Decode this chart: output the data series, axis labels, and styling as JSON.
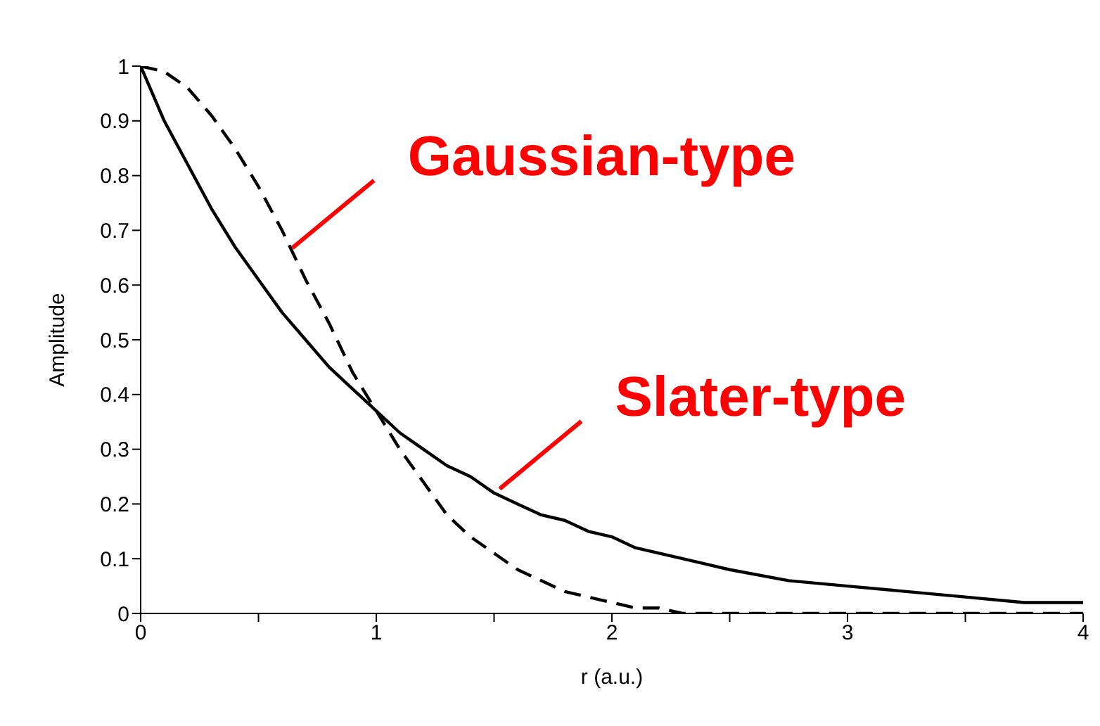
{
  "chart_data": {
    "type": "line",
    "xlabel": "r (a.u.)",
    "ylabel": "Amplitude",
    "x": [
      0,
      0.1,
      0.2,
      0.3,
      0.4,
      0.5,
      0.6,
      0.7,
      0.8,
      0.9,
      1,
      1.1,
      1.2,
      1.3,
      1.4,
      1.5,
      1.6,
      1.7,
      1.8,
      1.9,
      2,
      2.1,
      2.2,
      2.3,
      2.4,
      2.5,
      2.75,
      3,
      3.25,
      3.5,
      3.75,
      4
    ],
    "series": [
      {
        "color": "#000000",
        "line_style": "solid",
        "values": [
          1,
          0.9,
          0.82,
          0.74,
          0.67,
          0.61,
          0.55,
          0.5,
          0.45,
          0.41,
          0.37,
          0.33,
          0.3,
          0.27,
          0.25,
          0.22,
          0.2,
          0.18,
          0.17,
          0.15,
          0.14,
          0.12,
          0.11,
          0.1,
          0.09,
          0.08,
          0.06,
          0.05,
          0.04,
          0.03,
          0.02,
          0.02
        ]
      },
      {
        "color": "#000000",
        "line_style": "dashed",
        "values": [
          1,
          0.99,
          0.96,
          0.91,
          0.85,
          0.78,
          0.7,
          0.61,
          0.53,
          0.44,
          0.37,
          0.3,
          0.24,
          0.18,
          0.14,
          0.11,
          0.08,
          0.06,
          0.04,
          0.03,
          0.02,
          0.01,
          0.01,
          0,
          0,
          0,
          0,
          0,
          0,
          0,
          0,
          0
        ]
      }
    ],
    "xlim": [
      0,
      4
    ],
    "xticks": [
      0,
      {
        "value": 0.5,
        "label": null
      },
      1,
      {
        "value": 1.5,
        "label": null
      },
      2,
      {
        "value": 2.5,
        "label": null
      },
      3,
      {
        "value": 3.5,
        "label": null
      },
      4
    ],
    "ylim": [
      0,
      1
    ],
    "yticks": [
      0,
      0.1,
      0.2,
      0.3,
      0.4,
      0.5,
      0.6,
      0.7,
      0.8,
      0.9,
      1
    ],
    "grid": false,
    "legend": false,
    "marker": "none",
    "annotations": [
      {
        "text": "Gaussian-type",
        "x": 0.62,
        "y": 0.66
      },
      {
        "text": "Slater-type",
        "x": 1.5,
        "y": 0.22
      }
    ]
  }
}
